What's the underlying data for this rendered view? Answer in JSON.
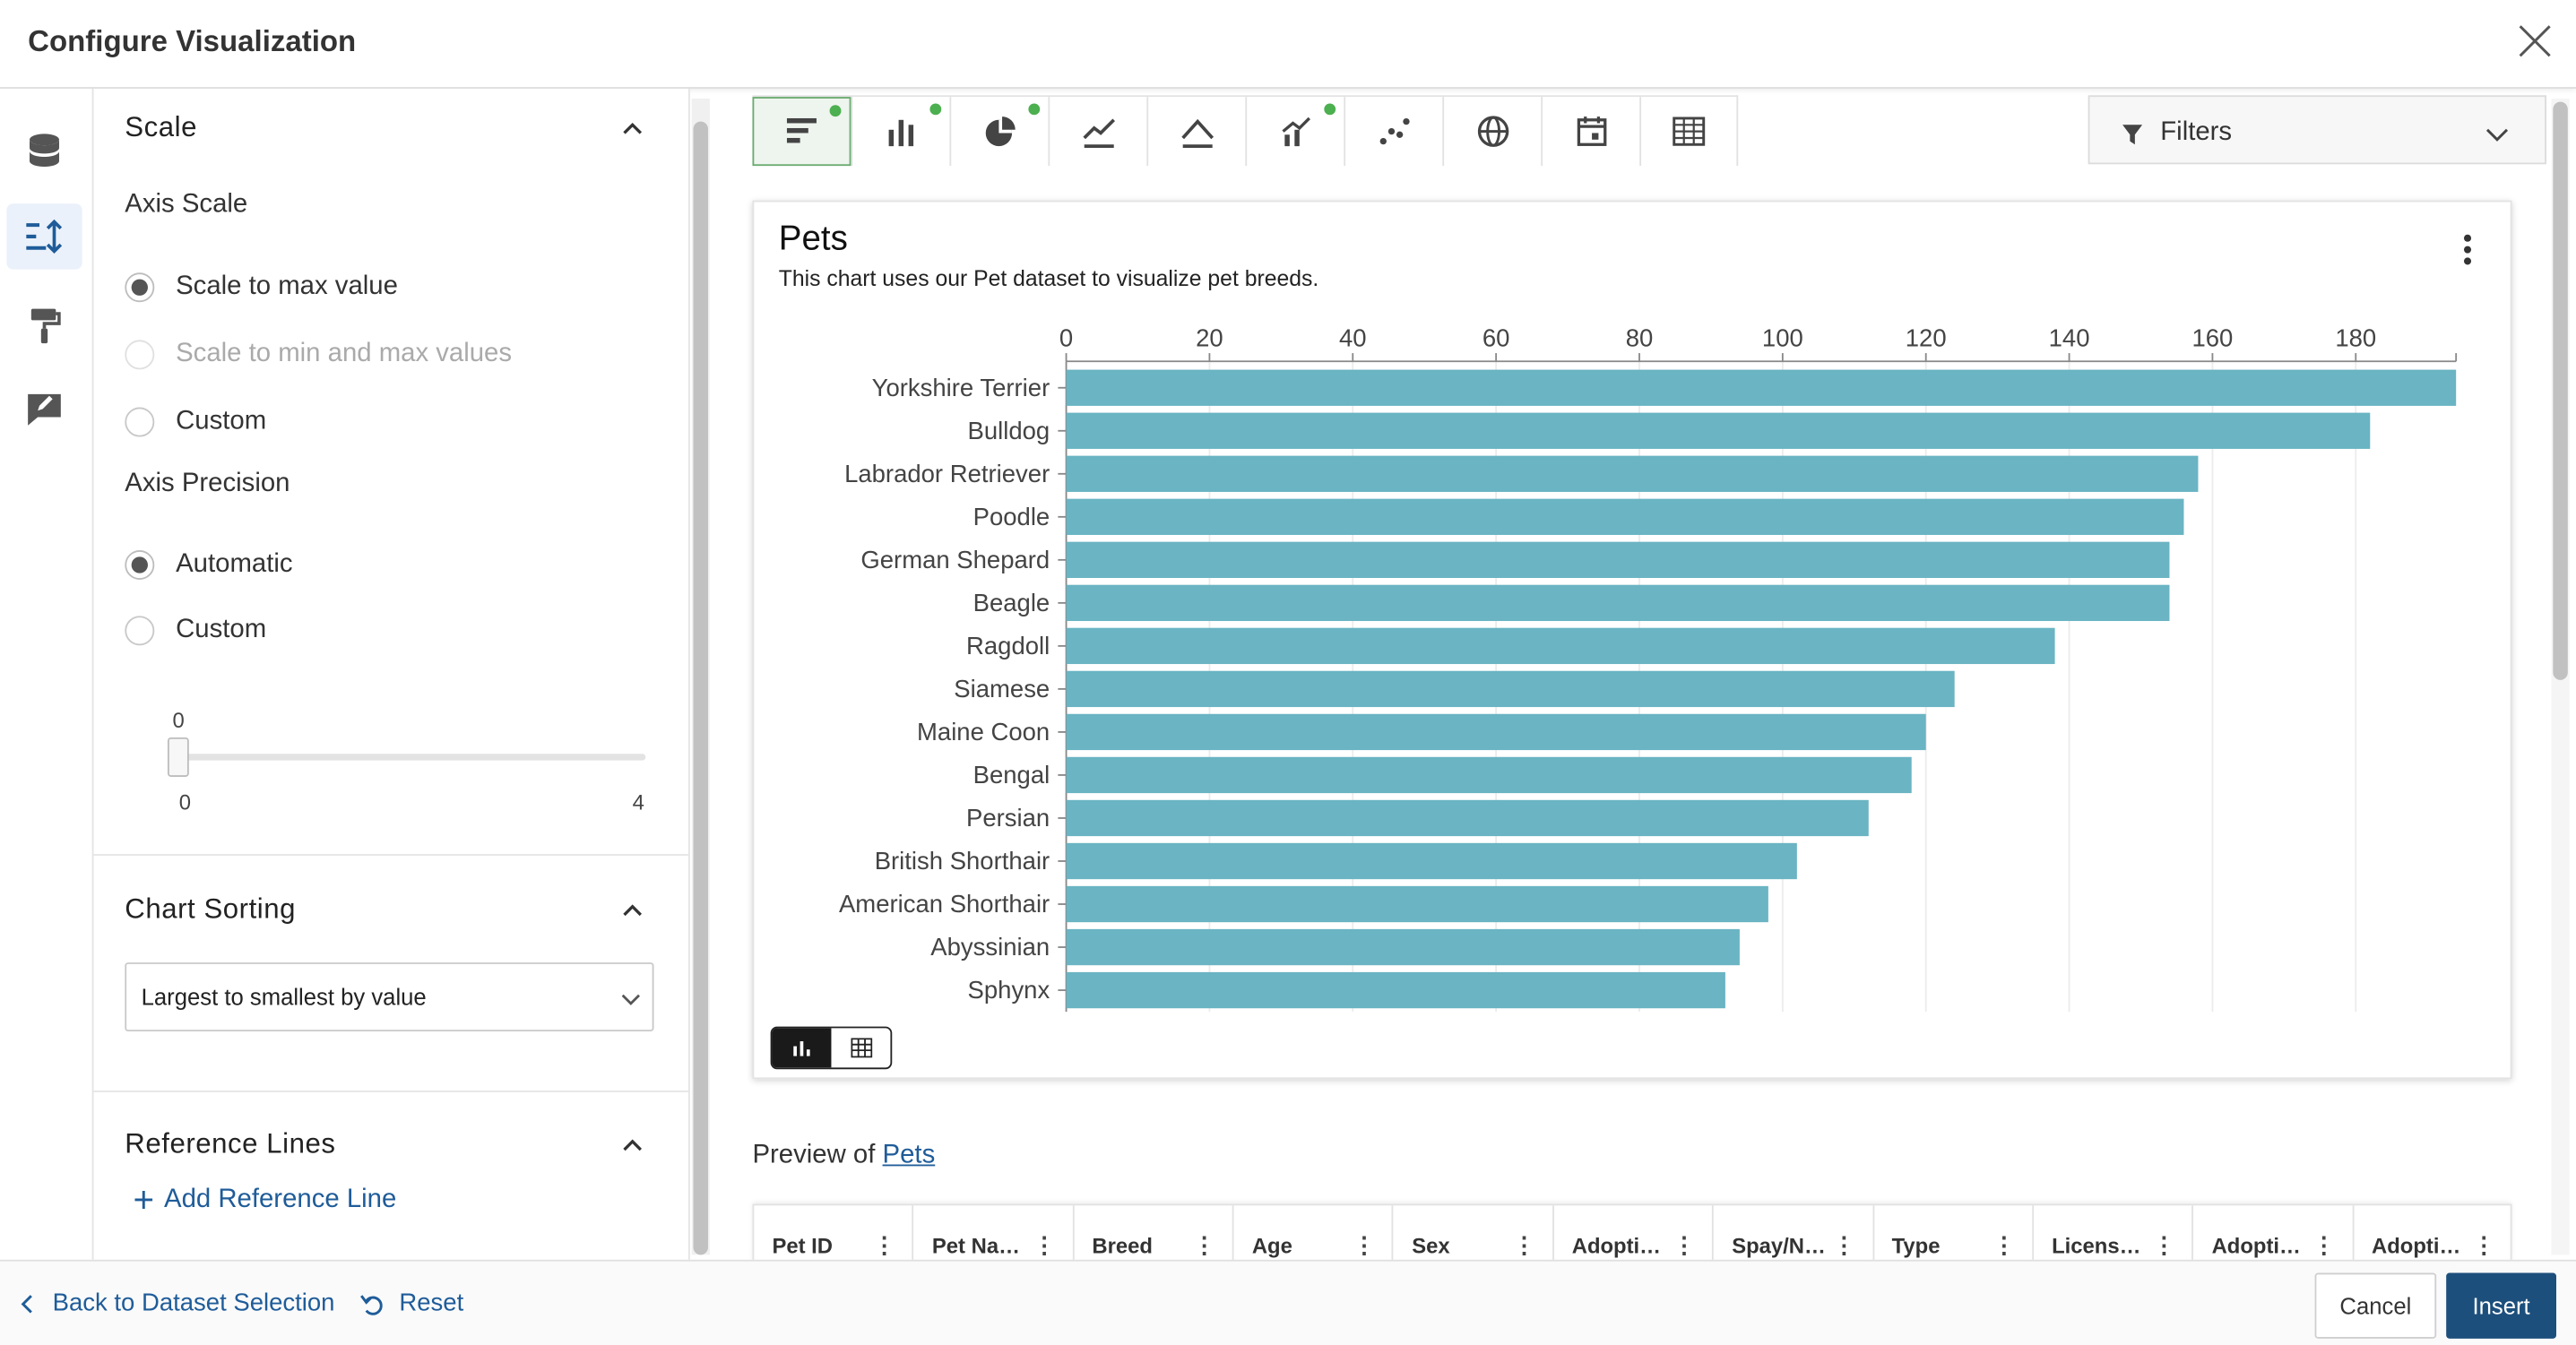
{
  "header": {
    "title": "Configure Visualization"
  },
  "rail": {
    "items": [
      "database-icon",
      "axis-settings-icon",
      "format-paint-icon",
      "annotate-icon"
    ],
    "active": "axis-settings-icon"
  },
  "settings": {
    "scale": {
      "title": "Scale",
      "axis_scale_label": "Axis Scale",
      "options": [
        {
          "label": "Scale to max value",
          "checked": true,
          "disabled": false
        },
        {
          "label": "Scale to min and max values",
          "checked": false,
          "disabled": true
        },
        {
          "label": "Custom",
          "checked": false,
          "disabled": false
        }
      ],
      "axis_precision_label": "Axis Precision",
      "precision_options": [
        {
          "label": "Automatic",
          "checked": true
        },
        {
          "label": "Custom",
          "checked": false
        }
      ],
      "slider": {
        "value_label": "0",
        "min_label": "0",
        "max_label": "4",
        "value": 0
      }
    },
    "sorting": {
      "title": "Chart Sorting",
      "selected": "Largest to smallest by value"
    },
    "reference": {
      "title": "Reference Lines",
      "add_label": "Add Reference Line"
    }
  },
  "toolbar": {
    "types": [
      {
        "icon": "horizontal-bar-chart-icon",
        "active": true,
        "dot": true
      },
      {
        "icon": "column-chart-icon",
        "active": false,
        "dot": true
      },
      {
        "icon": "pie-chart-icon",
        "active": false,
        "dot": true
      },
      {
        "icon": "line-chart-icon",
        "active": false,
        "dot": false
      },
      {
        "icon": "area-chart-icon",
        "active": false,
        "dot": false
      },
      {
        "icon": "combo-chart-icon",
        "active": false,
        "dot": true
      },
      {
        "icon": "scatter-chart-icon",
        "active": false,
        "dot": false
      },
      {
        "icon": "map-globe-icon",
        "active": false,
        "dot": false
      },
      {
        "icon": "calendar-icon",
        "active": false,
        "dot": false
      },
      {
        "icon": "table-icon",
        "active": false,
        "dot": false
      }
    ],
    "filters_label": "Filters",
    "dot_color": "#4caf50"
  },
  "chart_card": {
    "title": "Pets",
    "subtitle": "This chart uses our Pet dataset to visualize pet breeds."
  },
  "chart_data": {
    "type": "bar",
    "orientation": "horizontal",
    "title": "Pets",
    "subtitle": "This chart uses our Pet dataset to visualize pet breeds.",
    "categories": [
      "Yorkshire Terrier",
      "Bulldog",
      "Labrador Retriever",
      "Poodle",
      "German Shepard",
      "Beagle",
      "Ragdoll",
      "Siamese",
      "Maine Coon",
      "Bengal",
      "Persian",
      "British Shorthair",
      "American Shorthair",
      "Abyssinian",
      "Sphynx"
    ],
    "values": [
      194,
      182,
      158,
      156,
      154,
      154,
      138,
      124,
      120,
      118,
      112,
      102,
      98,
      94,
      92
    ],
    "xlim": [
      0,
      194
    ],
    "ticks": [
      0,
      20,
      40,
      60,
      80,
      100,
      120,
      140,
      160,
      180
    ],
    "tick_labels": [
      "0",
      "20",
      "40",
      "60",
      "80",
      "100",
      "120",
      "140",
      "160",
      "180"
    ],
    "axis_position": "top",
    "grid": true,
    "bar_color": "#6ab4c3"
  },
  "preview": {
    "prefix": "Preview of",
    "link": "Pets",
    "columns": [
      "Pet ID",
      "Pet Na…",
      "Breed",
      "Age",
      "Sex",
      "Adopti…",
      "Spay/N…",
      "Type",
      "Licens…",
      "Adopti…",
      "Adopti…"
    ]
  },
  "footer": {
    "back_label": "Back to Dataset Selection",
    "reset_label": "Reset",
    "cancel_label": "Cancel",
    "insert_label": "Insert"
  }
}
